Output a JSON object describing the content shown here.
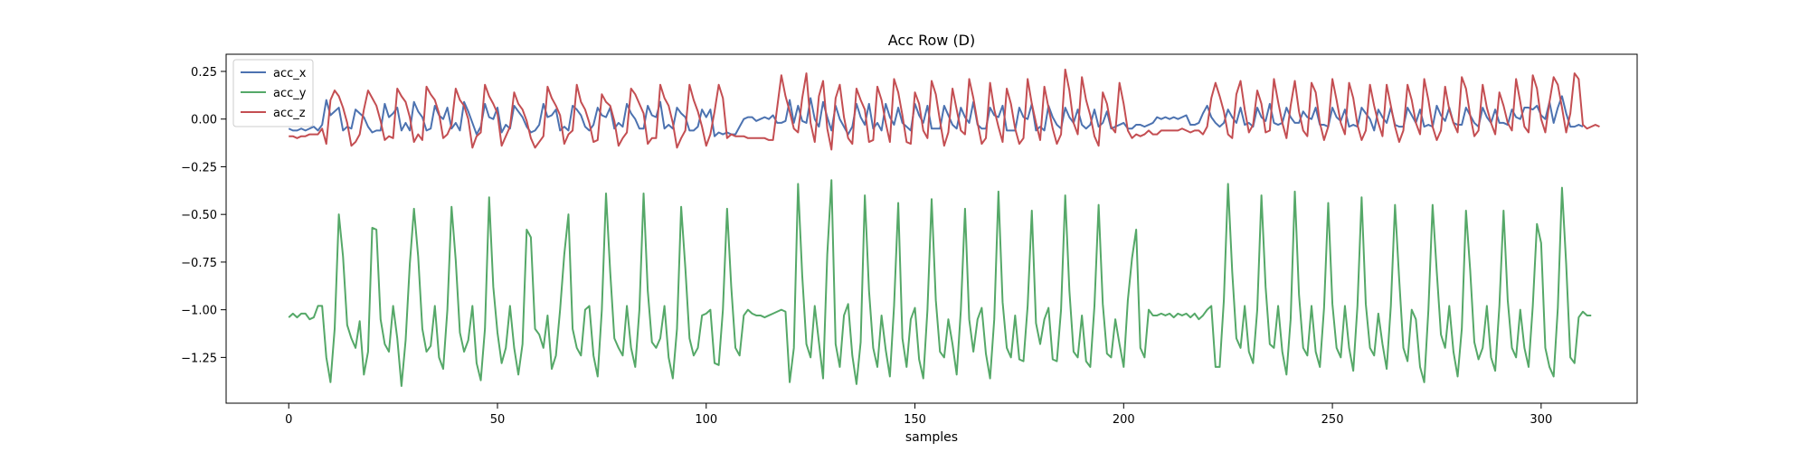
{
  "chart_data": {
    "type": "line",
    "title": "Acc Row (D)",
    "xlabel": "samples",
    "ylabel": "",
    "xlim": [
      -15,
      323
    ],
    "ylim": [
      -1.49,
      0.34
    ],
    "xticks": [
      0,
      50,
      100,
      150,
      200,
      250,
      300
    ],
    "yticks": [
      0.25,
      0.0,
      -0.25,
      -0.5,
      -0.75,
      -1.0,
      -1.25
    ],
    "ytick_labels": [
      "0.25",
      "0.00",
      "−0.25",
      "−0.50",
      "−0.75",
      "−1.00",
      "−1.25"
    ],
    "grid": false,
    "legend_position": "top-left",
    "series": [
      {
        "name": "acc_x",
        "color": "#4c72b0",
        "values": [
          -0.05,
          -0.06,
          -0.06,
          -0.05,
          -0.06,
          -0.05,
          -0.04,
          -0.06,
          -0.03,
          0.1,
          0.02,
          0.04,
          0.06,
          -0.06,
          -0.04,
          -0.05,
          0.05,
          0.03,
          0.01,
          -0.04,
          -0.07,
          -0.06,
          -0.06,
          0.08,
          0.01,
          0.03,
          0.06,
          -0.06,
          -0.02,
          -0.06,
          0.09,
          0.04,
          0.01,
          -0.06,
          -0.05,
          0.07,
          0.02,
          0.0,
          0.06,
          -0.05,
          -0.02,
          -0.06,
          0.09,
          0.04,
          -0.02,
          -0.08,
          -0.04,
          0.08,
          0.01,
          0.0,
          0.06,
          -0.07,
          -0.03,
          -0.05,
          0.07,
          0.04,
          0.01,
          -0.04,
          -0.07,
          -0.06,
          -0.03,
          0.08,
          0.01,
          0.02,
          0.05,
          -0.06,
          -0.04,
          -0.06,
          0.07,
          0.05,
          0.02,
          -0.04,
          -0.06,
          -0.03,
          0.06,
          0.02,
          0.01,
          0.06,
          -0.05,
          -0.02,
          -0.04,
          0.08,
          0.03,
          0.0,
          -0.05,
          -0.05,
          0.07,
          0.02,
          0.01,
          0.09,
          -0.05,
          -0.03,
          -0.05,
          0.06,
          0.03,
          0.01,
          -0.06,
          -0.06,
          -0.04,
          0.05,
          0.01,
          0.05,
          -0.09,
          -0.07,
          -0.08,
          -0.07,
          -0.08,
          -0.08,
          -0.04,
          0.0,
          0.01,
          0.01,
          -0.01,
          0.0,
          0.01,
          0.0,
          0.02,
          -0.02,
          -0.02,
          -0.01,
          0.1,
          -0.02,
          0.07,
          -0.01,
          -0.02,
          0.11,
          0.0,
          -0.04,
          0.09,
          0.01,
          -0.06,
          0.07,
          0.0,
          -0.04,
          -0.08,
          -0.04,
          0.08,
          0.01,
          -0.03,
          0.08,
          -0.05,
          -0.02,
          -0.06,
          0.08,
          0.01,
          -0.03,
          0.06,
          -0.02,
          -0.04,
          -0.06,
          0.08,
          0.02,
          -0.02,
          0.07,
          -0.05,
          -0.05,
          -0.05,
          0.07,
          0.02,
          -0.03,
          -0.05,
          0.06,
          0.01,
          -0.02,
          0.09,
          -0.03,
          -0.05,
          -0.05,
          0.06,
          0.02,
          0.01,
          0.07,
          -0.06,
          -0.06,
          -0.06,
          0.06,
          0.01,
          0.0,
          0.08,
          -0.06,
          -0.04,
          -0.06,
          0.07,
          0.01,
          -0.03,
          -0.05,
          0.06,
          0.01,
          -0.02,
          0.05,
          -0.03,
          -0.05,
          -0.03,
          0.05,
          -0.04,
          -0.02,
          0.04,
          -0.05,
          -0.04,
          -0.03,
          -0.02,
          -0.05,
          -0.05,
          -0.03,
          -0.03,
          -0.04,
          -0.03,
          -0.02,
          0.01,
          0.0,
          0.01,
          0.0,
          0.01,
          0.0,
          0.01,
          0.02,
          -0.03,
          -0.03,
          -0.02,
          0.03,
          0.07,
          0.01,
          -0.02,
          -0.04,
          -0.02,
          0.05,
          0.01,
          -0.02,
          0.06,
          -0.03,
          -0.02,
          -0.04,
          0.06,
          0.01,
          -0.01,
          0.08,
          -0.02,
          -0.03,
          -0.02,
          0.06,
          0.01,
          -0.02,
          -0.02,
          0.04,
          0.01,
          0.0,
          0.06,
          -0.03,
          -0.03,
          -0.04,
          0.06,
          0.01,
          -0.01,
          0.05,
          -0.04,
          -0.03,
          -0.04,
          0.06,
          0.03,
          0.0,
          -0.06,
          0.05,
          0.01,
          -0.02,
          0.06,
          -0.03,
          -0.04,
          -0.04,
          0.06,
          0.02,
          -0.02,
          0.05,
          -0.04,
          -0.03,
          -0.04,
          0.07,
          0.02,
          -0.01,
          0.06,
          -0.02,
          -0.03,
          -0.03,
          0.06,
          0.02,
          -0.02,
          -0.04,
          0.06,
          0.01,
          -0.02,
          0.05,
          -0.02,
          -0.02,
          -0.03,
          0.05,
          0.01,
          0.0,
          0.06,
          0.06,
          0.05,
          0.07,
          0.02,
          0.0,
          0.09,
          -0.02,
          0.06,
          0.12,
          0.03,
          -0.04,
          -0.04,
          -0.03,
          -0.04
        ],
        "x_start": 0
      },
      {
        "name": "acc_y",
        "color": "#55a868",
        "values": [
          -1.04,
          -1.02,
          -1.04,
          -1.02,
          -1.02,
          -1.05,
          -1.04,
          -0.98,
          -0.98,
          -1.25,
          -1.38,
          -1.1,
          -0.5,
          -0.72,
          -1.08,
          -1.15,
          -1.2,
          -1.06,
          -1.34,
          -1.22,
          -0.57,
          -0.58,
          -1.05,
          -1.18,
          -1.22,
          -0.98,
          -1.15,
          -1.4,
          -1.16,
          -0.76,
          -0.47,
          -0.72,
          -1.1,
          -1.22,
          -1.19,
          -0.98,
          -1.25,
          -1.31,
          -1.0,
          -0.46,
          -0.74,
          -1.12,
          -1.22,
          -1.16,
          -0.98,
          -1.28,
          -1.37,
          -1.1,
          -0.41,
          -0.88,
          -1.12,
          -1.28,
          -1.2,
          -0.98,
          -1.2,
          -1.34,
          -1.18,
          -0.58,
          -0.62,
          -1.1,
          -1.13,
          -1.2,
          -1.03,
          -1.31,
          -1.24,
          -1.0,
          -0.71,
          -0.5,
          -1.1,
          -1.2,
          -1.24,
          -1.0,
          -0.98,
          -1.24,
          -1.35,
          -1.0,
          -0.39,
          -0.8,
          -1.15,
          -1.2,
          -1.24,
          -0.98,
          -1.2,
          -1.3,
          -1.0,
          -0.39,
          -0.9,
          -1.17,
          -1.2,
          -1.15,
          -0.98,
          -1.25,
          -1.36,
          -1.1,
          -0.46,
          -0.78,
          -1.15,
          -1.24,
          -1.2,
          -1.03,
          -1.02,
          -1.0,
          -1.28,
          -1.29,
          -1.0,
          -0.47,
          -0.88,
          -1.2,
          -1.24,
          -1.03,
          -1.0,
          -1.02,
          -1.03,
          -1.03,
          -1.04,
          -1.03,
          -1.02,
          -1.01,
          -1.0,
          -1.01,
          -1.38,
          -1.2,
          -0.34,
          -0.82,
          -1.18,
          -1.25,
          -0.98,
          -1.17,
          -1.36,
          -0.71,
          -0.32,
          -1.18,
          -1.3,
          -1.03,
          -0.97,
          -1.24,
          -1.39,
          -1.17,
          -0.4,
          -0.9,
          -1.2,
          -1.3,
          -1.03,
          -1.21,
          -1.35,
          -0.98,
          -0.44,
          -1.15,
          -1.3,
          -1.05,
          -0.99,
          -1.26,
          -1.36,
          -1.0,
          -0.42,
          -0.95,
          -1.22,
          -1.25,
          -1.05,
          -1.18,
          -1.34,
          -1.0,
          -0.47,
          -1.05,
          -1.22,
          -1.05,
          -0.99,
          -1.23,
          -1.36,
          -1.05,
          -0.38,
          -0.96,
          -1.2,
          -1.25,
          -1.03,
          -1.26,
          -1.27,
          -0.98,
          -0.48,
          -1.07,
          -1.18,
          -1.05,
          -0.99,
          -1.26,
          -1.27,
          -1.0,
          -0.4,
          -0.9,
          -1.22,
          -1.25,
          -1.03,
          -1.27,
          -1.3,
          -0.98,
          -0.45,
          -0.97,
          -1.23,
          -1.25,
          -1.05,
          -1.18,
          -1.3,
          -0.95,
          -0.73,
          -0.58,
          -1.2,
          -1.25,
          -1.0,
          -1.03,
          -1.03,
          -1.02,
          -1.03,
          -1.02,
          -1.04,
          -1.02,
          -1.03,
          -1.02,
          -1.04,
          -1.02,
          -1.05,
          -1.03,
          -1.0,
          -0.98,
          -1.3,
          -1.3,
          -0.95,
          -0.34,
          -0.8,
          -1.15,
          -1.2,
          -0.98,
          -1.22,
          -1.28,
          -1.0,
          -0.4,
          -0.88,
          -1.18,
          -1.2,
          -0.98,
          -1.22,
          -1.34,
          -1.05,
          -0.38,
          -0.92,
          -1.2,
          -1.24,
          -0.98,
          -1.22,
          -1.3,
          -0.99,
          -0.44,
          -0.97,
          -1.2,
          -1.25,
          -0.98,
          -1.2,
          -1.32,
          -0.98,
          -0.41,
          -0.97,
          -1.2,
          -1.24,
          -1.02,
          -1.18,
          -1.31,
          -0.98,
          -0.45,
          -0.84,
          -1.2,
          -1.27,
          -1.0,
          -1.05,
          -1.3,
          -1.38,
          -1.0,
          -0.45,
          -0.8,
          -1.13,
          -1.2,
          -0.98,
          -1.22,
          -1.35,
          -1.1,
          -0.48,
          -0.79,
          -1.17,
          -1.26,
          -1.2,
          -0.98,
          -1.25,
          -1.32,
          -0.98,
          -0.48,
          -0.95,
          -1.2,
          -1.25,
          -1.0,
          -1.2,
          -1.3,
          -0.98,
          -0.55,
          -0.65,
          -1.2,
          -1.3,
          -1.35,
          -0.99,
          -0.36,
          -0.76,
          -1.25,
          -1.28,
          -1.04,
          -1.01,
          -1.03,
          -1.03
        ],
        "x_start": 0
      },
      {
        "name": "acc_z",
        "color": "#c44e52",
        "values": [
          -0.09,
          -0.09,
          -0.1,
          -0.09,
          -0.09,
          -0.08,
          -0.08,
          -0.08,
          -0.05,
          -0.13,
          0.1,
          0.15,
          0.12,
          0.06,
          -0.02,
          -0.14,
          -0.12,
          -0.08,
          0.05,
          0.15,
          0.11,
          0.07,
          -0.01,
          -0.11,
          -0.09,
          -0.1,
          0.16,
          0.12,
          0.09,
          0.01,
          -0.12,
          -0.08,
          -0.11,
          0.17,
          0.13,
          0.1,
          0.03,
          -0.1,
          -0.08,
          -0.03,
          0.16,
          0.1,
          0.07,
          0.0,
          -0.15,
          -0.09,
          -0.07,
          0.18,
          0.12,
          0.08,
          0.03,
          -0.14,
          -0.09,
          -0.04,
          0.14,
          0.08,
          0.05,
          -0.01,
          -0.1,
          -0.15,
          -0.12,
          -0.09,
          0.17,
          0.11,
          0.07,
          0.02,
          -0.13,
          -0.08,
          -0.06,
          0.18,
          0.09,
          0.05,
          -0.02,
          -0.12,
          -0.11,
          0.13,
          0.09,
          0.07,
          -0.01,
          -0.14,
          -0.1,
          -0.07,
          0.16,
          0.13,
          0.08,
          0.03,
          -0.13,
          -0.1,
          -0.1,
          0.18,
          0.11,
          0.07,
          -0.02,
          -0.15,
          -0.1,
          -0.06,
          0.18,
          0.1,
          0.04,
          -0.04,
          -0.14,
          -0.08,
          0.04,
          0.18,
          0.11,
          -0.1,
          -0.08,
          -0.09,
          -0.09,
          -0.09,
          -0.1,
          -0.1,
          -0.1,
          -0.1,
          -0.1,
          -0.11,
          -0.11,
          0.06,
          0.23,
          0.12,
          0.04,
          -0.05,
          -0.07,
          0.11,
          0.24,
          -0.02,
          -0.12,
          0.12,
          0.2,
          -0.05,
          -0.16,
          0.11,
          0.18,
          0.01,
          -0.1,
          -0.13,
          0.16,
          0.1,
          0.05,
          -0.12,
          -0.11,
          0.17,
          0.1,
          -0.02,
          -0.12,
          0.21,
          0.14,
          0.02,
          -0.12,
          -0.13,
          0.14,
          0.08,
          -0.06,
          -0.1,
          0.2,
          0.13,
          -0.01,
          -0.14,
          -0.07,
          0.16,
          0.05,
          -0.06,
          -0.08,
          0.21,
          0.11,
          -0.02,
          -0.13,
          -0.1,
          0.19,
          0.05,
          -0.04,
          -0.12,
          0.16,
          0.08,
          -0.05,
          -0.13,
          -0.1,
          0.21,
          0.08,
          -0.02,
          -0.11,
          0.17,
          0.06,
          -0.05,
          -0.13,
          -0.08,
          0.26,
          0.15,
          -0.02,
          -0.08,
          0.22,
          0.1,
          0.02,
          -0.09,
          -0.14,
          0.14,
          0.08,
          -0.04,
          -0.07,
          0.19,
          0.08,
          -0.06,
          -0.1,
          -0.08,
          -0.09,
          -0.08,
          -0.06,
          -0.08,
          -0.08,
          -0.06,
          -0.06,
          -0.06,
          -0.06,
          -0.06,
          -0.05,
          -0.06,
          -0.07,
          -0.06,
          -0.06,
          -0.08,
          -0.04,
          0.11,
          0.19,
          0.12,
          0.04,
          -0.08,
          -0.1,
          0.13,
          0.2,
          0.05,
          -0.07,
          -0.03,
          0.15,
          0.08,
          -0.07,
          -0.06,
          0.21,
          0.09,
          -0.02,
          -0.1,
          0.07,
          0.2,
          0.04,
          -0.06,
          -0.09,
          0.19,
          0.14,
          -0.02,
          -0.11,
          -0.04,
          0.21,
          0.1,
          -0.02,
          -0.08,
          0.19,
          0.11,
          -0.03,
          -0.11,
          -0.06,
          0.18,
          0.07,
          -0.02,
          -0.09,
          0.18,
          0.07,
          -0.04,
          -0.12,
          -0.06,
          0.18,
          0.1,
          -0.02,
          -0.08,
          0.21,
          0.1,
          -0.04,
          -0.11,
          -0.06,
          0.17,
          0.05,
          -0.02,
          -0.07,
          0.22,
          0.16,
          0.02,
          -0.09,
          -0.06,
          0.18,
          0.06,
          -0.02,
          -0.08,
          0.14,
          0.07,
          -0.02,
          -0.06,
          0.21,
          0.09,
          -0.04,
          -0.07,
          0.23,
          0.16,
          0.0,
          -0.07,
          0.09,
          0.22,
          0.18,
          0.06,
          -0.07,
          0.03,
          0.24,
          0.21,
          -0.03,
          -0.05,
          -0.04,
          -0.03,
          -0.04
        ],
        "x_start": 0
      }
    ]
  }
}
